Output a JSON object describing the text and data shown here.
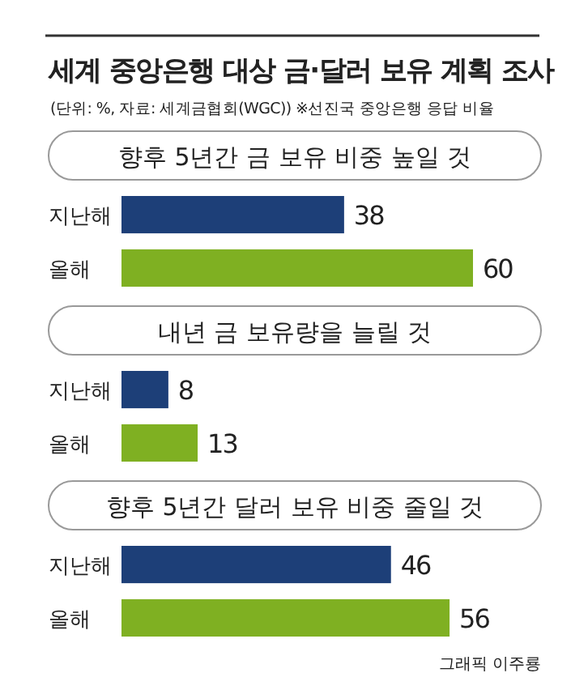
{
  "chart_data": [
    {
      "type": "other",
      "title": "세계 중앙은행 대상 금·달러 보유 계획 조사",
      "subtitle": "(단위: %, 자료: 세계금협회(WGC))  ※선진국 중앙은행 응답 비율",
      "annotations": [
        "그래픽 이주룡"
      ]
    },
    {
      "type": "bar",
      "orientation": "horizontal",
      "title": "향후 5년간 금 보유 비중 높일 것",
      "categories": [
        "지난해",
        "올해"
      ],
      "values": [
        38,
        60
      ],
      "colors": [
        "#1d3f78",
        "#7fb022"
      ],
      "data_labels": true
    },
    {
      "type": "bar",
      "orientation": "horizontal",
      "title": "내년 금 보유량을 늘릴 것",
      "categories": [
        "지난해",
        "올해"
      ],
      "values": [
        8,
        13
      ],
      "colors": [
        "#1d3f78",
        "#7fb022"
      ],
      "data_labels": true
    },
    {
      "type": "bar",
      "orientation": "horizontal",
      "title": "향후 5년간 달러 보유 비중 줄일 것",
      "categories": [
        "지난해",
        "올해"
      ],
      "values": [
        46,
        56
      ],
      "colors": [
        "#1d3f78",
        "#7fb022"
      ],
      "data_labels": true
    }
  ]
}
